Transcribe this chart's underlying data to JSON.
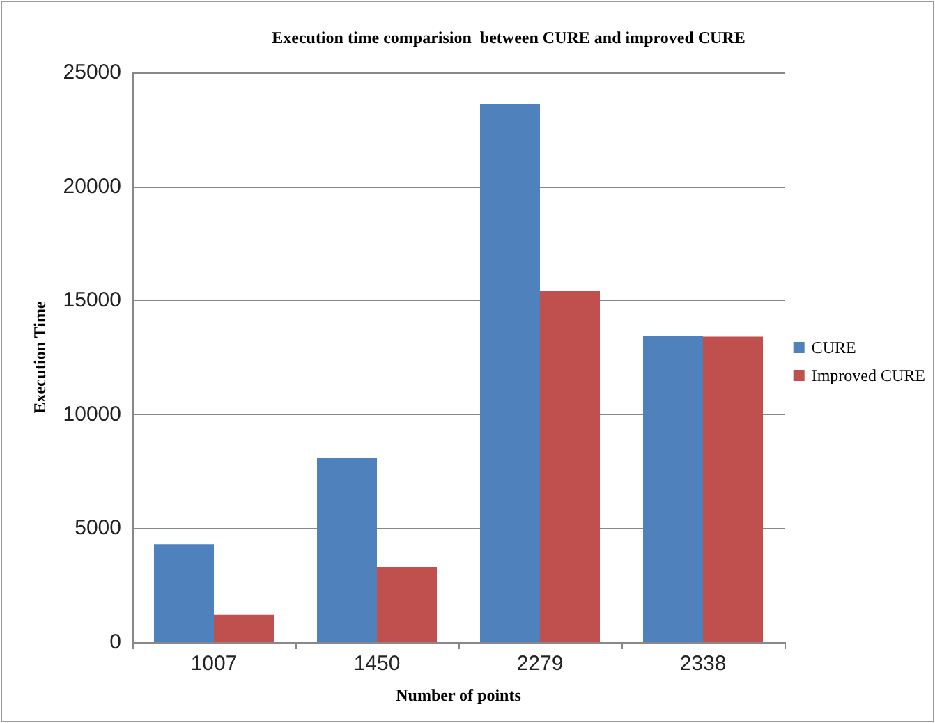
{
  "chart_data": {
    "type": "bar",
    "title": "Execution time comparision  between CURE and improved CURE",
    "xlabel": "Number of points",
    "ylabel": "Execution Time",
    "categories": [
      "1007",
      "1450",
      "2279",
      "2338"
    ],
    "series": [
      {
        "name": "CURE",
        "color": "#4f81bd",
        "values": [
          4300,
          8100,
          23600,
          13450
        ]
      },
      {
        "name": "Improved CURE",
        "color": "#c0504d",
        "values": [
          1200,
          3300,
          15400,
          13400
        ]
      }
    ],
    "ylim": [
      0,
      25000
    ],
    "yticks": [
      0,
      5000,
      10000,
      15000,
      20000,
      25000
    ],
    "grid": "y",
    "legend": "right"
  }
}
